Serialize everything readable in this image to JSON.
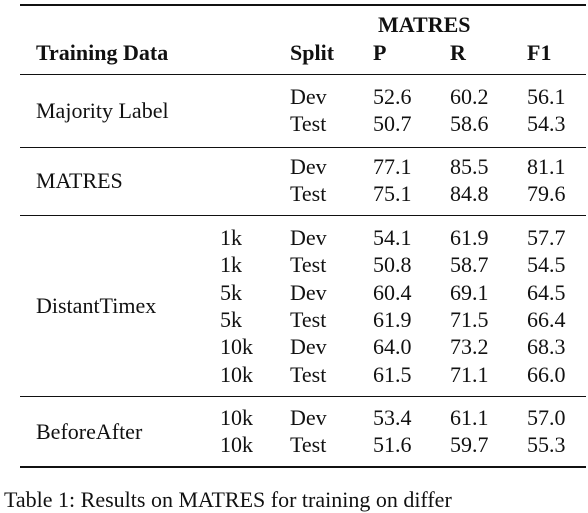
{
  "table": {
    "group_header": "MATRES",
    "columns": [
      "Training Data",
      "Split",
      "P",
      "R",
      "F1"
    ],
    "groups": [
      {
        "label": "Majority Label",
        "rows": [
          {
            "split": "Dev",
            "p": "52.6",
            "r": "60.2",
            "f1": "56.1"
          },
          {
            "split": "Test",
            "p": "50.7",
            "r": "58.6",
            "f1": "54.3"
          }
        ]
      },
      {
        "label": "MATRES",
        "rows": [
          {
            "split": "Dev",
            "p": "77.1",
            "r": "85.5",
            "f1": "81.1"
          },
          {
            "split": "Test",
            "p": "75.1",
            "r": "84.8",
            "f1": "79.6"
          }
        ]
      },
      {
        "label": "DistantTimex",
        "rows": [
          {
            "size": "1k",
            "split": "Dev",
            "p": "54.1",
            "r": "61.9",
            "f1": "57.7"
          },
          {
            "size": "1k",
            "split": "Test",
            "p": "50.8",
            "r": "58.7",
            "f1": "54.5"
          },
          {
            "size": "5k",
            "split": "Dev",
            "p": "60.4",
            "r": "69.1",
            "f1": "64.5"
          },
          {
            "size": "5k",
            "split": "Test",
            "p": "61.9",
            "r": "71.5",
            "f1": "66.4"
          },
          {
            "size": "10k",
            "split": "Dev",
            "p": "64.0",
            "r": "73.2",
            "f1": "68.3"
          },
          {
            "size": "10k",
            "split": "Test",
            "p": "61.5",
            "r": "71.1",
            "f1": "66.0"
          }
        ]
      },
      {
        "label": "BeforeAfter",
        "rows": [
          {
            "size": "10k",
            "split": "Dev",
            "p": "53.4",
            "r": "61.1",
            "f1": "57.0"
          },
          {
            "size": "10k",
            "split": "Test",
            "p": "51.6",
            "r": "59.7",
            "f1": "55.3"
          }
        ]
      }
    ],
    "caption": "Table 1: Results on MATRES for training on differ"
  }
}
